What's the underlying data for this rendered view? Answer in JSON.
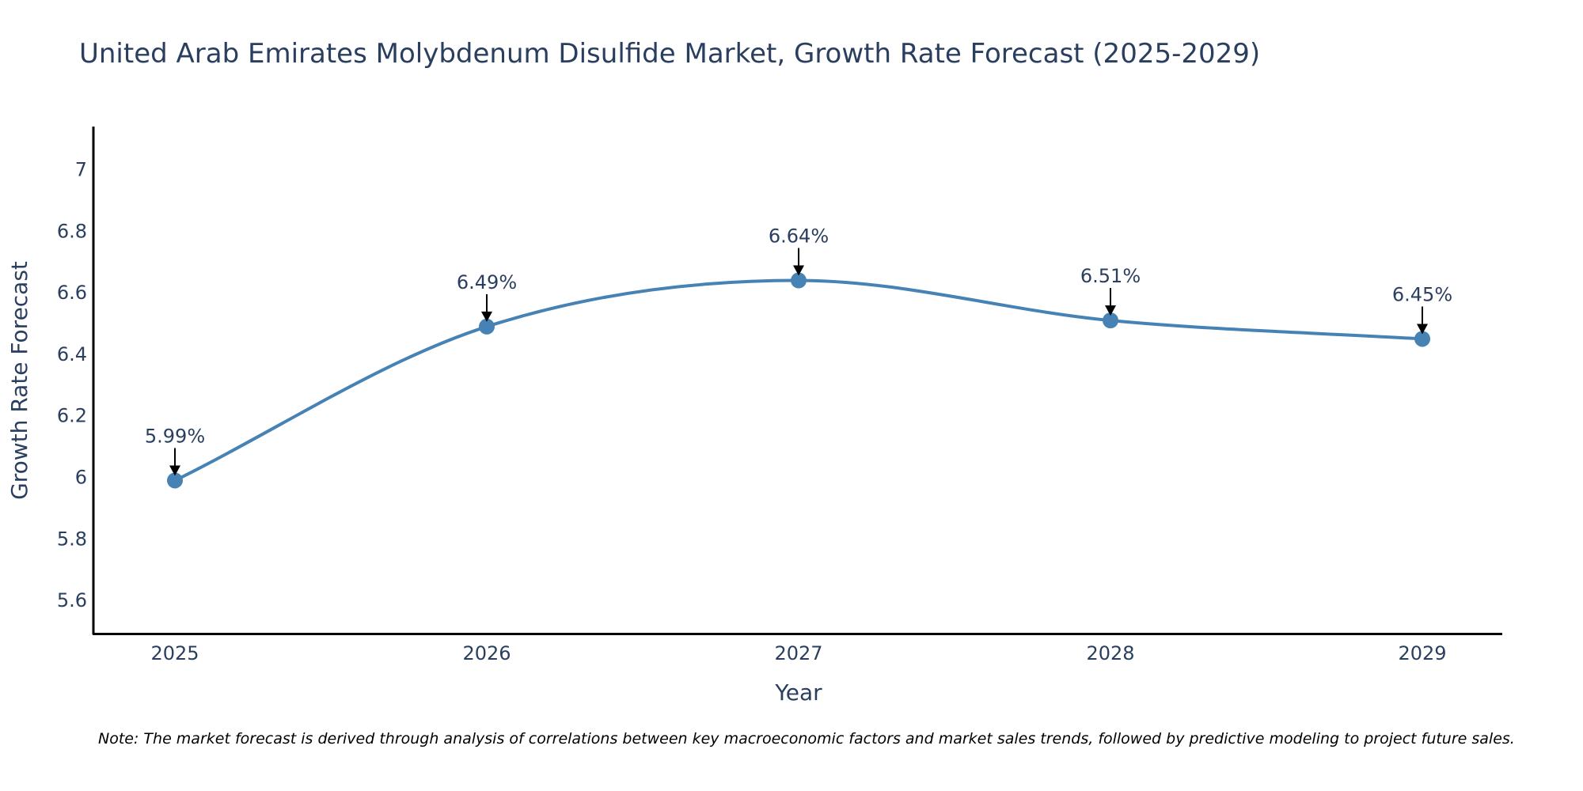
{
  "chart_data": {
    "type": "line",
    "title": "United Arab Emirates Molybdenum Disulfide Market, Growth Rate Forecast (2025-2029)",
    "xlabel": "Year",
    "ylabel": "Growth Rate Forecast",
    "categories": [
      "2025",
      "2026",
      "2027",
      "2028",
      "2029"
    ],
    "series": [
      {
        "name": "Growth Rate Forecast",
        "values": [
          5.99,
          6.49,
          6.64,
          6.51,
          6.45
        ],
        "labels": [
          "5.99%",
          "6.49%",
          "6.64%",
          "6.51%",
          "6.45%"
        ]
      }
    ],
    "ylim": [
      5.49,
      7.14
    ],
    "yticks": [
      5.6,
      5.8,
      6,
      6.2,
      6.4,
      6.6,
      6.8,
      7
    ],
    "ytick_labels": [
      "5.6",
      "5.8",
      "6",
      "6.2",
      "6.4",
      "6.6",
      "6.8",
      "7"
    ],
    "grid": false,
    "line_color": "#4682b4",
    "note": "Note: The market forecast is derived through analysis of correlations between key macroeconomic factors and market sales trends, followed by predictive modeling to project future sales."
  }
}
